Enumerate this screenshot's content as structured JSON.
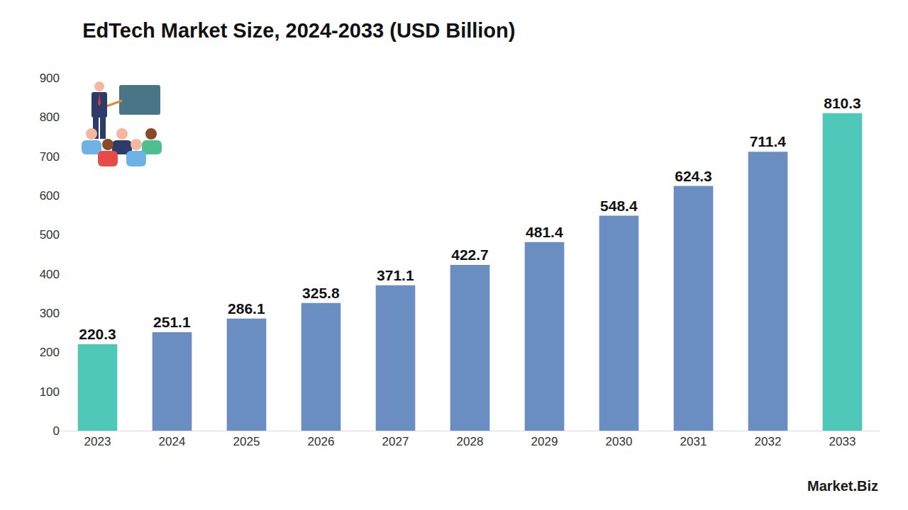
{
  "chart_data": {
    "type": "bar",
    "title": "EdTech Market Size, 2024-2033 (USD Billion)",
    "categories": [
      "2023",
      "2024",
      "2025",
      "2026",
      "2027",
      "2028",
      "2029",
      "2030",
      "2031",
      "2032",
      "2033"
    ],
    "values": [
      220.3,
      251.1,
      286.1,
      325.8,
      371.1,
      422.7,
      481.4,
      548.4,
      624.3,
      711.4,
      810.3
    ],
    "colors": [
      "#4fc8b9",
      "#6a8ec2",
      "#6a8ec2",
      "#6a8ec2",
      "#6a8ec2",
      "#6a8ec2",
      "#6a8ec2",
      "#6a8ec2",
      "#6a8ec2",
      "#6a8ec2",
      "#4fc8b9"
    ],
    "ylim": [
      0,
      900
    ],
    "yticks": [
      0,
      100,
      200,
      300,
      400,
      500,
      600,
      700,
      800,
      900
    ],
    "grid": false,
    "data_labels": true,
    "annotations": [
      "Market.Biz"
    ]
  }
}
